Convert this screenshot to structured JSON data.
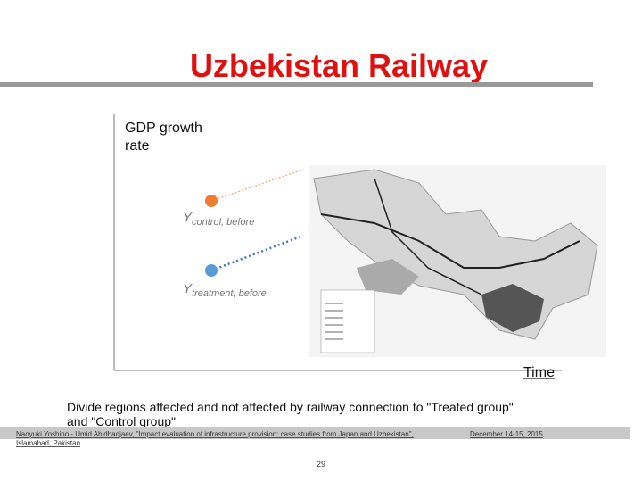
{
  "header": {
    "title": "Uzbekistan Railway"
  },
  "diagram": {
    "y_axis_label": [
      "GDP growth",
      "rate"
    ],
    "x_axis_label": "Time",
    "control_label": {
      "symbol": "Y",
      "subscript": "control, before"
    },
    "treatment_label": {
      "symbol": "Y",
      "subscript": "treatment, before"
    }
  },
  "caption": [
    "Divide regions affected and not affected by railway connection to \"Treated group\"",
    "and \"Control group\""
  ],
  "footer": {
    "citation": [
      "Naoyuki Yoshino - Umid Abidhadjaev, \"Impact evaluation of infrastructure provision: case studies from Japan and Uzbekistan\",",
      "Islamabad, Pakistan"
    ],
    "date": "December 14-15, 2015",
    "page": "29"
  }
}
